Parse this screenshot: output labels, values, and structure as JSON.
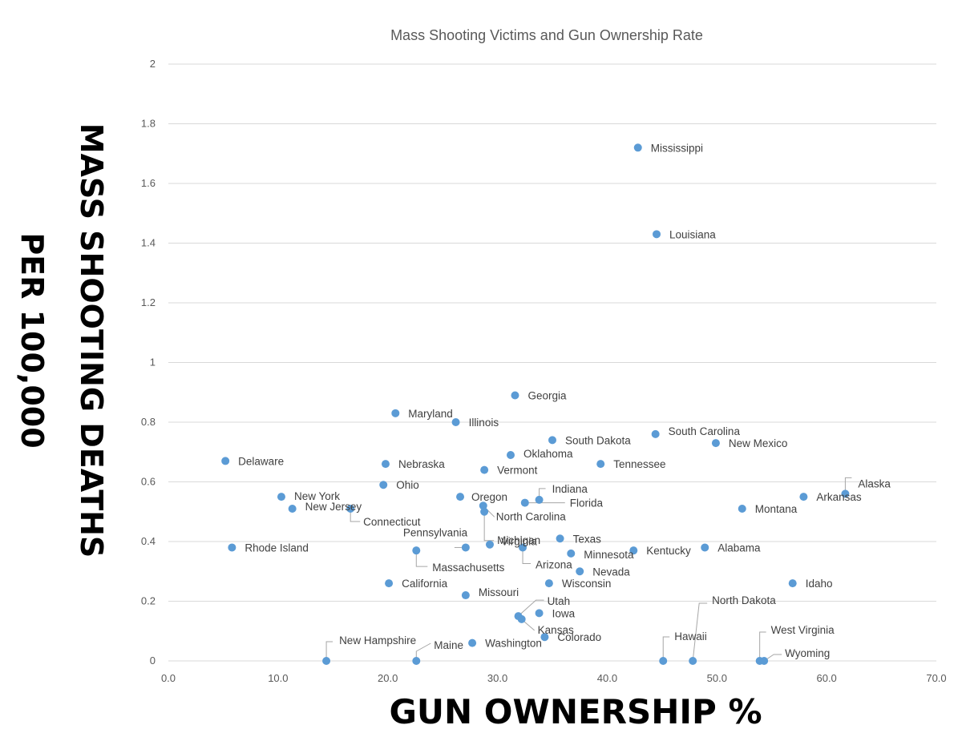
{
  "chart_data": {
    "type": "scatter",
    "title": "Mass Shooting Victims and Gun Ownership Rate",
    "xlabel": "GUN OWNERSHIP %",
    "ylabel_line1": "MASS SHOOTING DEATHS",
    "ylabel_line2": "PER 100,000",
    "xlim": [
      0,
      70
    ],
    "ylim": [
      0,
      2
    ],
    "xticks": [
      "0.0",
      "10.0",
      "20.0",
      "30.0",
      "40.0",
      "50.0",
      "60.0",
      "70.0"
    ],
    "yticks": [
      "0",
      "0.2",
      "0.4",
      "0.6",
      "0.8",
      "1",
      "1.2",
      "1.4",
      "1.6",
      "1.8",
      "2"
    ],
    "grid": "horizontal",
    "color": "#5b9bd5",
    "points": [
      {
        "label": "Mississippi",
        "x": 42.8,
        "y": 1.72
      },
      {
        "label": "Louisiana",
        "x": 44.5,
        "y": 1.43
      },
      {
        "label": "Georgia",
        "x": 31.6,
        "y": 0.89
      },
      {
        "label": "Maryland",
        "x": 20.7,
        "y": 0.83
      },
      {
        "label": "Illinois",
        "x": 26.2,
        "y": 0.8
      },
      {
        "label": "South Carolina",
        "x": 44.4,
        "y": 0.76
      },
      {
        "label": "South Dakota",
        "x": 35.0,
        "y": 0.74
      },
      {
        "label": "New Mexico",
        "x": 49.9,
        "y": 0.73
      },
      {
        "label": "Oklahoma",
        "x": 31.2,
        "y": 0.69
      },
      {
        "label": "Delaware",
        "x": 5.2,
        "y": 0.67
      },
      {
        "label": "Nebraska",
        "x": 19.8,
        "y": 0.66
      },
      {
        "label": "Tennessee",
        "x": 39.4,
        "y": 0.66
      },
      {
        "label": "Vermont",
        "x": 28.8,
        "y": 0.64
      },
      {
        "label": "Ohio",
        "x": 19.6,
        "y": 0.59
      },
      {
        "label": "Alaska",
        "x": 61.7,
        "y": 0.56
      },
      {
        "label": "New York",
        "x": 10.3,
        "y": 0.55
      },
      {
        "label": "Oregon",
        "x": 26.6,
        "y": 0.55
      },
      {
        "label": "Arkansas",
        "x": 57.9,
        "y": 0.55
      },
      {
        "label": "Indiana",
        "x": 33.8,
        "y": 0.54
      },
      {
        "label": "Florida",
        "x": 32.5,
        "y": 0.53
      },
      {
        "label": "New Jersey",
        "x": 11.3,
        "y": 0.51
      },
      {
        "label": "Connecticut",
        "x": 16.6,
        "y": 0.51
      },
      {
        "label": "North Carolina",
        "x": 28.7,
        "y": 0.52
      },
      {
        "label": "Michigan",
        "x": 28.8,
        "y": 0.5
      },
      {
        "label": "Montana",
        "x": 52.3,
        "y": 0.51
      },
      {
        "label": "Texas",
        "x": 35.7,
        "y": 0.41
      },
      {
        "label": "Rhode Island",
        "x": 5.8,
        "y": 0.38
      },
      {
        "label": "Pennsylvania",
        "x": 27.1,
        "y": 0.38
      },
      {
        "label": "Virginia",
        "x": 29.3,
        "y": 0.39
      },
      {
        "label": "Arizona",
        "x": 32.3,
        "y": 0.38
      },
      {
        "label": "Alabama",
        "x": 48.9,
        "y": 0.38
      },
      {
        "label": "Massachusetts",
        "x": 22.6,
        "y": 0.37
      },
      {
        "label": "Kentucky",
        "x": 42.4,
        "y": 0.37
      },
      {
        "label": "Minnesota",
        "x": 36.7,
        "y": 0.36
      },
      {
        "label": "Nevada",
        "x": 37.5,
        "y": 0.3
      },
      {
        "label": "Wisconsin",
        "x": 34.7,
        "y": 0.26
      },
      {
        "label": "California",
        "x": 20.1,
        "y": 0.26
      },
      {
        "label": "Idaho",
        "x": 56.9,
        "y": 0.26
      },
      {
        "label": "Missouri",
        "x": 27.1,
        "y": 0.22
      },
      {
        "label": "Iowa",
        "x": 33.8,
        "y": 0.16
      },
      {
        "label": "Utah",
        "x": 31.9,
        "y": 0.15
      },
      {
        "label": "Kansas",
        "x": 32.2,
        "y": 0.14
      },
      {
        "label": "Colorado",
        "x": 34.3,
        "y": 0.08
      },
      {
        "label": "Washington",
        "x": 27.7,
        "y": 0.06
      },
      {
        "label": "New Hampshire",
        "x": 14.4,
        "y": 0.0
      },
      {
        "label": "Maine",
        "x": 22.6,
        "y": 0.0
      },
      {
        "label": "Hawaii",
        "x": 45.1,
        "y": 0.0
      },
      {
        "label": "North Dakota",
        "x": 47.8,
        "y": 0.0
      },
      {
        "label": "West Virginia",
        "x": 53.9,
        "y": 0.0
      },
      {
        "label": "Wyoming",
        "x": 54.3,
        "y": 0.0
      }
    ]
  }
}
